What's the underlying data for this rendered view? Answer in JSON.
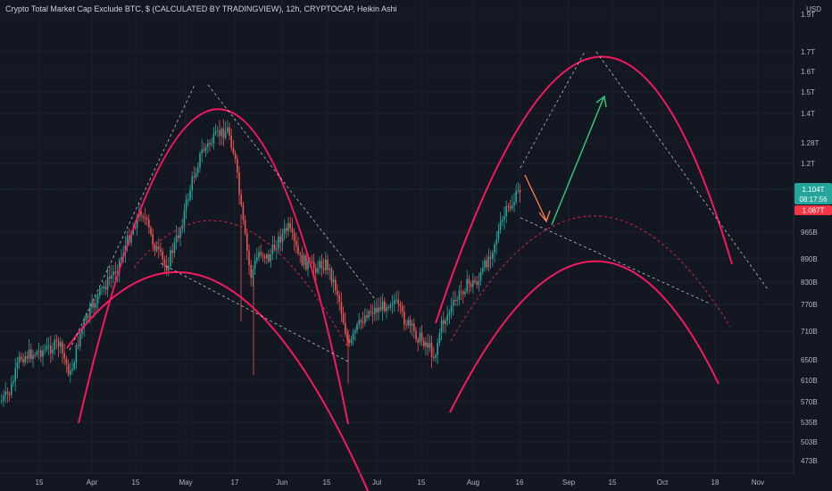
{
  "header": {
    "title": "Crypto Total Market Cap Exclude BTC, $ (CALCULATED BY TRADINGVIEW), 12h, CRYPTOCAP, Heikin Ashi",
    "currency": "USD"
  },
  "price_axis": {
    "ticks": [
      "1.9T",
      "1.7T",
      "1.6T",
      "1.5T",
      "1.4T",
      "1.28T",
      "1.2T",
      "965B",
      "890B",
      "830B",
      "770B",
      "710B",
      "650B",
      "610B",
      "570B",
      "535B",
      "503B",
      "473B"
    ]
  },
  "price_badges": {
    "current_price": "1.104T",
    "countdown": "08:17:56",
    "low_price": "1.087T"
  },
  "time_axis": {
    "ticks": [
      "15",
      "Apr",
      "15",
      "May",
      "17",
      "Jun",
      "15",
      "Jul",
      "15",
      "Aug",
      "16",
      "Sep",
      "15",
      "Oct",
      "18",
      "Nov"
    ]
  },
  "colors": {
    "background": "#131722",
    "grid": "#1e222d",
    "bull": "#26a69a",
    "bear": "#ef5350",
    "arc": "#f7195b",
    "arc_dashed": "#d6204f",
    "trend_dashed": "#d1d4dc",
    "arrow_green": "#33d17a",
    "arrow_orange": "#f57c4d",
    "badge_price": "#26a69a",
    "badge_low": "#f23645"
  },
  "chart_data": {
    "type": "candlestick",
    "chart_style": "Heikin Ashi",
    "interval": "12h",
    "x_range": [
      "2024-03-01",
      "2024-11-20"
    ],
    "y_scale": "log",
    "grid": true,
    "current_price_line": "1.104T",
    "anchor_series_close": [
      {
        "date": "2024-03-01",
        "value": "560B"
      },
      {
        "date": "2024-03-15",
        "value": "650B"
      },
      {
        "date": "2024-03-28",
        "value": "620B"
      },
      {
        "date": "2024-04-10",
        "value": "900B"
      },
      {
        "date": "2024-04-15",
        "value": "880B"
      },
      {
        "date": "2024-05-07",
        "value": "1.28T"
      },
      {
        "date": "2024-05-15",
        "value": "1.36T"
      },
      {
        "date": "2024-05-22",
        "value": "1.05T"
      },
      {
        "date": "2024-05-30",
        "value": "800B"
      },
      {
        "date": "2024-06-06",
        "value": "940B"
      },
      {
        "date": "2024-06-16",
        "value": "870B"
      },
      {
        "date": "2024-06-24",
        "value": "700B"
      },
      {
        "date": "2024-07-05",
        "value": "740B"
      },
      {
        "date": "2024-07-15",
        "value": "720B"
      },
      {
        "date": "2024-07-25",
        "value": "650B"
      },
      {
        "date": "2024-08-05",
        "value": "800B"
      },
      {
        "date": "2024-08-16",
        "value": "1.10T"
      }
    ]
  }
}
